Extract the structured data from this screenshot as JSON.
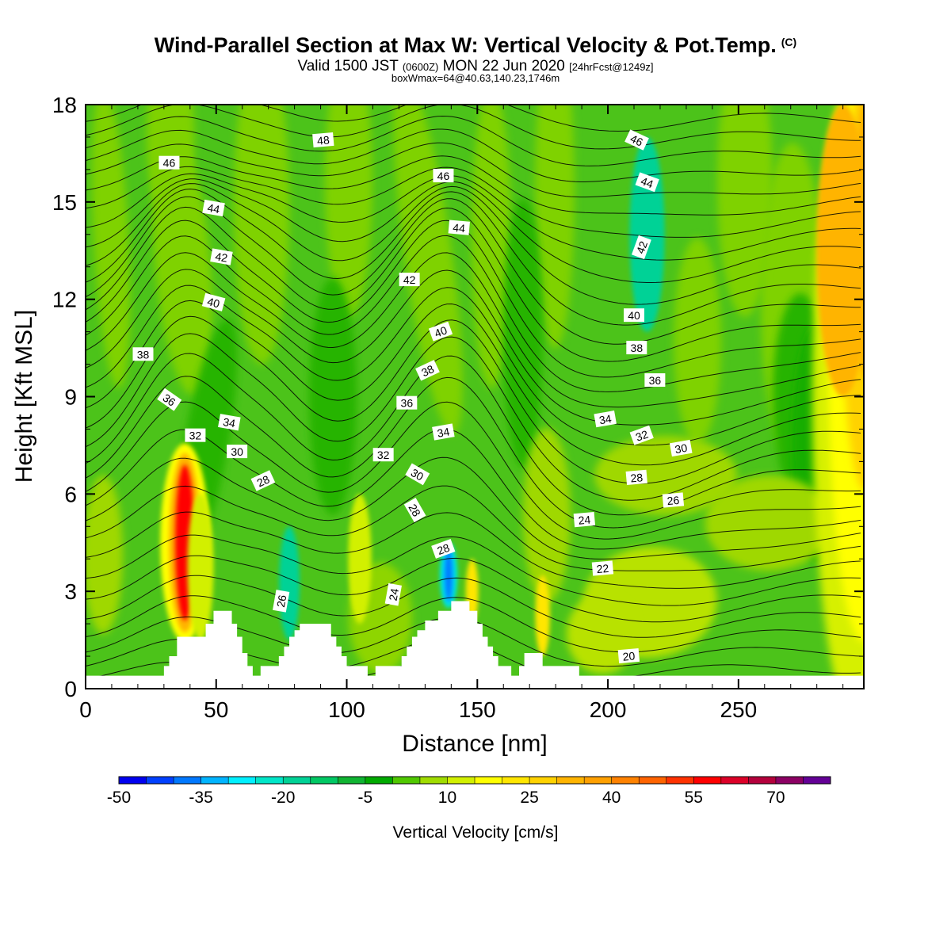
{
  "header": {
    "title": "Wind-Parallel Section at Max W: Vertical Velocity & Pot.Temp.",
    "title_mark": "(C)",
    "valid_prefix": "Valid 1500 JST",
    "valid_utc": "(0600Z)",
    "valid_date": "MON 22 Jun 2020",
    "forecast": "[24hrFcst@1249z]",
    "box_info": "boxWmax=64@40.63,140.23,1746m"
  },
  "chart_data": {
    "type": "heatmap",
    "xlabel": "Distance [nm]",
    "ylabel": "Height [Kft MSL]",
    "xlim": [
      0,
      298
    ],
    "ylim": [
      0,
      18
    ],
    "x_ticks": [
      0,
      50,
      100,
      150,
      200,
      250
    ],
    "y_ticks": [
      0,
      3,
      6,
      9,
      12,
      15,
      18
    ],
    "colorbar": {
      "label": "Vertical Velocity [cm/s]",
      "tick_labels": [
        "-50",
        "-35",
        "-20",
        "-5",
        "10",
        "25",
        "40",
        "55",
        "70"
      ],
      "colors": [
        "#0000f0",
        "#0040ff",
        "#0078ff",
        "#00b4ff",
        "#00f0ff",
        "#00e6c8",
        "#00d296",
        "#00c864",
        "#10b432",
        "#00aa00",
        "#50c800",
        "#a0dc00",
        "#d2f000",
        "#ffff00",
        "#ffe600",
        "#ffd200",
        "#ffb400",
        "#ffa000",
        "#ff8200",
        "#ff6400",
        "#ff3200",
        "#ff0000",
        "#dc0028",
        "#b4003c",
        "#8c0064",
        "#640096"
      ]
    },
    "velocity_features": [
      {
        "x": 38,
        "y_range": [
          1.5,
          7.5
        ],
        "w_cms": 55
      },
      {
        "x": 44,
        "y_range": [
          1.5,
          6
        ],
        "w_cms": 10
      },
      {
        "x": 78,
        "y_range": [
          1.5,
          5
        ],
        "w_cms": -20
      },
      {
        "x": 105,
        "y_range": [
          2,
          6
        ],
        "w_cms": 10
      },
      {
        "x": 139,
        "y_range": [
          2.5,
          4.5
        ],
        "w_cms": -38
      },
      {
        "x": 148,
        "y_range": [
          2,
          4
        ],
        "w_cms": 22
      },
      {
        "x": 175,
        "y_range": [
          1,
          3.5
        ],
        "w_cms": 18
      },
      {
        "x": 215,
        "y_range": [
          11,
          17
        ],
        "w_cms": -20
      },
      {
        "x": 290,
        "y_range": [
          9,
          18
        ],
        "w_cms": 30
      }
    ],
    "terrain": [
      [
        0,
        0.4
      ],
      [
        29,
        0.4
      ],
      [
        30,
        0.7
      ],
      [
        32,
        1.0
      ],
      [
        35,
        1.6
      ],
      [
        45,
        1.6
      ],
      [
        46,
        2.0
      ],
      [
        48,
        2.0
      ],
      [
        49,
        2.4
      ],
      [
        55,
        2.4
      ],
      [
        56,
        2.0
      ],
      [
        58,
        1.6
      ],
      [
        60,
        1.1
      ],
      [
        62,
        0.7
      ],
      [
        64,
        0.4
      ],
      [
        66,
        0.4
      ],
      [
        67,
        0.7
      ],
      [
        73,
        0.7
      ],
      [
        74,
        1.0
      ],
      [
        76,
        1.3
      ],
      [
        78,
        1.6
      ],
      [
        80,
        1.8
      ],
      [
        82,
        2.0
      ],
      [
        90,
        2.0
      ],
      [
        92,
        2.0
      ],
      [
        94,
        1.6
      ],
      [
        96,
        1.3
      ],
      [
        98,
        1.0
      ],
      [
        100,
        0.7
      ],
      [
        107,
        0.7
      ],
      [
        108,
        0.4
      ],
      [
        110,
        0.4
      ],
      [
        111,
        0.7
      ],
      [
        120,
        0.7
      ],
      [
        121,
        1.0
      ],
      [
        123,
        1.3
      ],
      [
        125,
        1.6
      ],
      [
        127,
        1.8
      ],
      [
        130,
        2.1
      ],
      [
        135,
        2.4
      ],
      [
        140,
        2.7
      ],
      [
        145,
        2.7
      ],
      [
        147,
        2.4
      ],
      [
        150,
        2.0
      ],
      [
        152,
        1.6
      ],
      [
        154,
        1.3
      ],
      [
        156,
        1.0
      ],
      [
        158,
        0.7
      ],
      [
        161,
        0.7
      ],
      [
        163,
        0.4
      ],
      [
        165,
        0.4
      ],
      [
        166,
        0.7
      ],
      [
        168,
        1.1
      ],
      [
        173,
        1.1
      ],
      [
        175,
        0.7
      ],
      [
        187,
        0.7
      ],
      [
        189,
        0.4
      ],
      [
        298,
        0.4
      ]
    ],
    "theta_labels": [
      {
        "x": 32,
        "y": 16.2,
        "text": "46",
        "angle": 0
      },
      {
        "x": 91,
        "y": 16.9,
        "text": "48",
        "angle": -5
      },
      {
        "x": 137,
        "y": 15.8,
        "text": "46",
        "angle": 0
      },
      {
        "x": 211,
        "y": 16.9,
        "text": "46",
        "angle": 25
      },
      {
        "x": 49,
        "y": 14.8,
        "text": "44",
        "angle": 10
      },
      {
        "x": 143,
        "y": 14.2,
        "text": "44",
        "angle": 5
      },
      {
        "x": 215,
        "y": 15.6,
        "text": "44",
        "angle": 20
      },
      {
        "x": 52,
        "y": 13.3,
        "text": "42",
        "angle": 10
      },
      {
        "x": 124,
        "y": 12.6,
        "text": "42",
        "angle": 0
      },
      {
        "x": 213,
        "y": 13.6,
        "text": "42",
        "angle": -70
      },
      {
        "x": 49,
        "y": 11.9,
        "text": "40",
        "angle": 15
      },
      {
        "x": 136,
        "y": 11.0,
        "text": "40",
        "angle": -20
      },
      {
        "x": 210,
        "y": 11.5,
        "text": "40",
        "angle": 0
      },
      {
        "x": 22,
        "y": 10.3,
        "text": "38",
        "angle": 0
      },
      {
        "x": 131,
        "y": 9.8,
        "text": "38",
        "angle": -25
      },
      {
        "x": 211,
        "y": 10.5,
        "text": "38",
        "angle": 0
      },
      {
        "x": 32,
        "y": 8.9,
        "text": "36",
        "angle": 35
      },
      {
        "x": 123,
        "y": 8.8,
        "text": "36",
        "angle": 0
      },
      {
        "x": 218,
        "y": 9.5,
        "text": "36",
        "angle": 0
      },
      {
        "x": 55,
        "y": 8.2,
        "text": "34",
        "angle": 10
      },
      {
        "x": 137,
        "y": 7.9,
        "text": "34",
        "angle": -10
      },
      {
        "x": 199,
        "y": 8.3,
        "text": "34",
        "angle": -10
      },
      {
        "x": 42,
        "y": 7.8,
        "text": "32",
        "angle": 0
      },
      {
        "x": 114,
        "y": 7.2,
        "text": "32",
        "angle": 0
      },
      {
        "x": 213,
        "y": 7.8,
        "text": "32",
        "angle": -20
      },
      {
        "x": 58,
        "y": 7.3,
        "text": "30",
        "angle": 0
      },
      {
        "x": 127,
        "y": 6.6,
        "text": "30",
        "angle": 30
      },
      {
        "x": 228,
        "y": 7.4,
        "text": "30",
        "angle": -10
      },
      {
        "x": 68,
        "y": 6.4,
        "text": "28",
        "angle": -25
      },
      {
        "x": 126,
        "y": 5.5,
        "text": "28",
        "angle": 60
      },
      {
        "x": 211,
        "y": 6.5,
        "text": "28",
        "angle": -5
      },
      {
        "x": 137,
        "y": 4.3,
        "text": "28",
        "angle": -20
      },
      {
        "x": 75,
        "y": 2.7,
        "text": "26",
        "angle": -80
      },
      {
        "x": 225,
        "y": 5.8,
        "text": "26",
        "angle": -5
      },
      {
        "x": 118,
        "y": 2.9,
        "text": "24",
        "angle": -80
      },
      {
        "x": 191,
        "y": 5.2,
        "text": "24",
        "angle": -5
      },
      {
        "x": 198,
        "y": 3.7,
        "text": "22",
        "angle": -5
      },
      {
        "x": 208,
        "y": 1.0,
        "text": "20",
        "angle": -5
      }
    ]
  }
}
